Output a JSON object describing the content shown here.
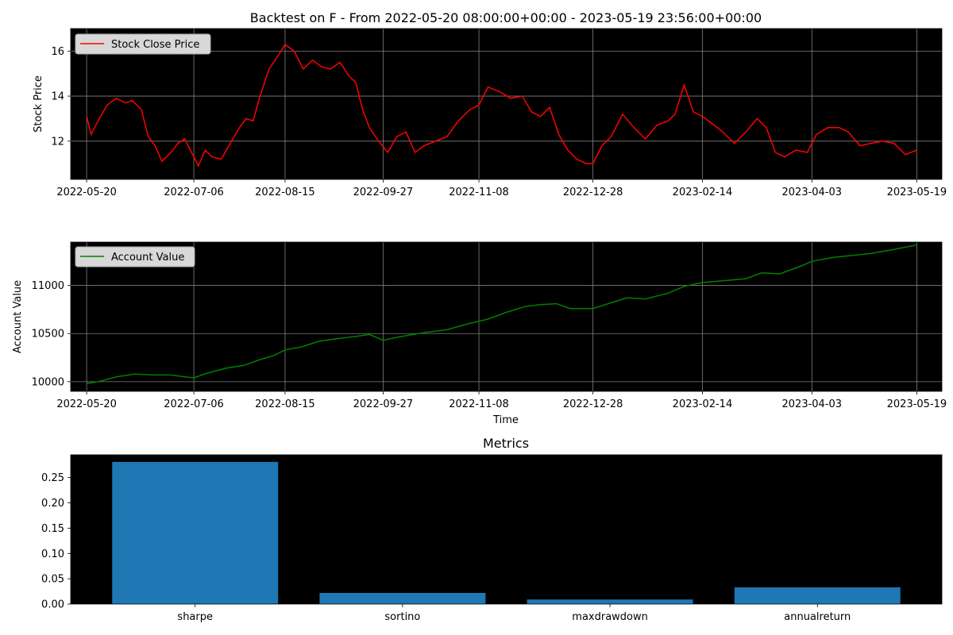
{
  "figure": {
    "title": "Backtest on F - From 2022-05-20 08:00:00+00:00 - 2023-05-19 23:56:00+00:00"
  },
  "colors": {
    "price": "#ff0000",
    "account": "#008000",
    "bar": "#1f77b4",
    "plot_bg": "#000000",
    "grid": "#808080"
  },
  "chart_data": [
    {
      "type": "line",
      "title": "",
      "xlabel": "",
      "ylabel": "Stock Price",
      "legend": {
        "label": "Stock Close Price",
        "placement": "top-left"
      },
      "grid": true,
      "x_range": [
        "2022-05-13",
        "2023-05-30"
      ],
      "ylim": [
        10.3,
        17.0
      ],
      "x_ticks": [
        "2022-05-20",
        "2022-07-06",
        "2022-08-15",
        "2022-09-27",
        "2022-11-08",
        "2022-12-28",
        "2023-02-14",
        "2023-04-03",
        "2023-05-19"
      ],
      "y_ticks": [
        12,
        14,
        16
      ],
      "series": [
        {
          "name": "Stock Close Price",
          "x": [
            "2022-05-20",
            "2022-05-22",
            "2022-05-25",
            "2022-05-29",
            "2022-06-02",
            "2022-06-06",
            "2022-06-09",
            "2022-06-13",
            "2022-06-16",
            "2022-06-19",
            "2022-06-22",
            "2022-06-26",
            "2022-06-29",
            "2022-07-02",
            "2022-07-05",
            "2022-07-08",
            "2022-07-11",
            "2022-07-14",
            "2022-07-18",
            "2022-07-22",
            "2022-07-26",
            "2022-07-29",
            "2022-08-01",
            "2022-08-04",
            "2022-08-08",
            "2022-08-12",
            "2022-08-15",
            "2022-08-19",
            "2022-08-23",
            "2022-08-27",
            "2022-08-31",
            "2022-09-04",
            "2022-09-08",
            "2022-09-12",
            "2022-09-15",
            "2022-09-18",
            "2022-09-21",
            "2022-09-25",
            "2022-09-29",
            "2022-10-03",
            "2022-10-07",
            "2022-10-11",
            "2022-10-15",
            "2022-10-20",
            "2022-10-25",
            "2022-10-30",
            "2022-11-04",
            "2022-11-08",
            "2022-11-12",
            "2022-11-17",
            "2022-11-22",
            "2022-11-27",
            "2022-12-01",
            "2022-12-05",
            "2022-12-09",
            "2022-12-13",
            "2022-12-17",
            "2022-12-21",
            "2022-12-25",
            "2022-12-28",
            "2023-01-01",
            "2023-01-05",
            "2023-01-10",
            "2023-01-15",
            "2023-01-20",
            "2023-01-25",
            "2023-01-30",
            "2023-02-02",
            "2023-02-06",
            "2023-02-10",
            "2023-02-14",
            "2023-02-18",
            "2023-02-23",
            "2023-02-28",
            "2023-03-05",
            "2023-03-10",
            "2023-03-14",
            "2023-03-18",
            "2023-03-22",
            "2023-03-27",
            "2023-04-01",
            "2023-04-05",
            "2023-04-10",
            "2023-04-15",
            "2023-04-19",
            "2023-04-24",
            "2023-04-29",
            "2023-05-04",
            "2023-05-09",
            "2023-05-14",
            "2023-05-19"
          ],
          "values": [
            13.1,
            12.3,
            12.9,
            13.6,
            13.9,
            13.7,
            13.8,
            13.4,
            12.2,
            11.8,
            11.1,
            11.5,
            11.9,
            12.1,
            11.5,
            10.9,
            11.6,
            11.3,
            11.2,
            11.9,
            12.6,
            13.0,
            12.9,
            14.0,
            15.2,
            15.8,
            16.3,
            16.0,
            15.2,
            15.6,
            15.3,
            15.2,
            15.5,
            14.9,
            14.6,
            13.4,
            12.6,
            12.0,
            11.5,
            12.2,
            12.4,
            11.5,
            11.8,
            12.0,
            12.2,
            12.9,
            13.4,
            13.6,
            14.4,
            14.2,
            13.9,
            14.0,
            13.3,
            13.1,
            13.5,
            12.3,
            11.6,
            11.2,
            11.0,
            11.0,
            11.8,
            12.2,
            13.2,
            12.6,
            12.1,
            12.7,
            12.9,
            13.2,
            14.5,
            13.3,
            13.1,
            12.8,
            12.4,
            11.9,
            12.4,
            13.0,
            12.6,
            11.5,
            11.3,
            11.6,
            11.5,
            12.3,
            12.6,
            12.6,
            12.4,
            11.8,
            11.9,
            12.0,
            11.9,
            11.4,
            11.6
          ]
        }
      ]
    },
    {
      "type": "line",
      "title": "",
      "xlabel": "Time",
      "ylabel": "Account Value",
      "legend": {
        "label": "Account Value",
        "placement": "top-left"
      },
      "grid": true,
      "x_range": [
        "2022-05-13",
        "2023-05-30"
      ],
      "ylim": [
        9900,
        11450
      ],
      "x_ticks": [
        "2022-05-20",
        "2022-07-06",
        "2022-08-15",
        "2022-09-27",
        "2022-11-08",
        "2022-12-28",
        "2023-02-14",
        "2023-04-03",
        "2023-05-19"
      ],
      "y_ticks": [
        10000,
        10500,
        11000
      ],
      "series": [
        {
          "name": "Account Value",
          "x": [
            "2022-05-20",
            "2022-05-25",
            "2022-06-02",
            "2022-06-10",
            "2022-06-18",
            "2022-06-26",
            "2022-07-02",
            "2022-07-06",
            "2022-07-12",
            "2022-07-20",
            "2022-07-28",
            "2022-08-04",
            "2022-08-10",
            "2022-08-15",
            "2022-08-22",
            "2022-08-30",
            "2022-09-08",
            "2022-09-15",
            "2022-09-21",
            "2022-09-27",
            "2022-10-05",
            "2022-10-15",
            "2022-10-25",
            "2022-11-03",
            "2022-11-12",
            "2022-11-20",
            "2022-11-28",
            "2022-12-05",
            "2022-12-12",
            "2022-12-18",
            "2022-12-28",
            "2023-01-05",
            "2023-01-12",
            "2023-01-20",
            "2023-01-30",
            "2023-02-06",
            "2023-02-14",
            "2023-02-24",
            "2023-03-05",
            "2023-03-12",
            "2023-03-20",
            "2023-03-28",
            "2023-04-03",
            "2023-04-12",
            "2023-04-20",
            "2023-04-28",
            "2023-05-08",
            "2023-05-19"
          ],
          "values": [
            9980,
            10000,
            10050,
            10080,
            10070,
            10070,
            10050,
            10040,
            10090,
            10140,
            10170,
            10230,
            10270,
            10330,
            10360,
            10420,
            10450,
            10470,
            10490,
            10430,
            10470,
            10510,
            10540,
            10600,
            10650,
            10720,
            10780,
            10800,
            10810,
            10760,
            10760,
            10820,
            10870,
            10860,
            10920,
            10990,
            11030,
            11050,
            11070,
            11130,
            11120,
            11190,
            11250,
            11290,
            11310,
            11330,
            11370,
            11420
          ]
        }
      ]
    },
    {
      "type": "bar",
      "title": "Metrics",
      "xlabel": "",
      "ylabel": "",
      "grid": false,
      "categories": [
        "sharpe",
        "sortino",
        "maxdrawdown",
        "annualreturn"
      ],
      "values": [
        0.281,
        0.022,
        0.009,
        0.033
      ],
      "ylim": [
        0,
        0.295
      ],
      "y_ticks": [
        "0.00",
        "0.05",
        "0.10",
        "0.15",
        "0.20",
        "0.25"
      ]
    }
  ]
}
